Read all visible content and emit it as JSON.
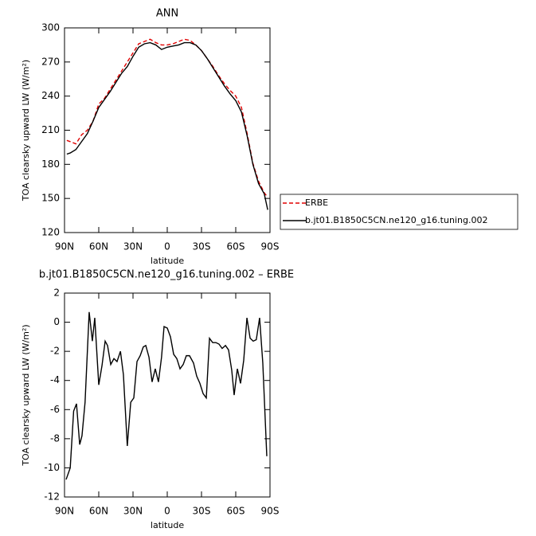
{
  "chart_data": [
    {
      "type": "line",
      "title": "ANN",
      "xlabel": "latitude",
      "ylabel": "TOA clearsky upward LW (W/m²)",
      "x": [
        88,
        85,
        80,
        75,
        70,
        65,
        60,
        55,
        50,
        45,
        40,
        35,
        30,
        25,
        20,
        15,
        10,
        5,
        0,
        -5,
        -10,
        -15,
        -20,
        -25,
        -30,
        -35,
        -40,
        -45,
        -50,
        -55,
        -60,
        -65,
        -70,
        -75,
        -80,
        -85,
        -88
      ],
      "series": [
        {
          "name": "ERBE",
          "color": "#e00000",
          "dash": true,
          "values": [
            201,
            200,
            198,
            206,
            210,
            218,
            233,
            238,
            246,
            254,
            262,
            270,
            278,
            286,
            288,
            290,
            287,
            285,
            285,
            286,
            288,
            290,
            289,
            285,
            280,
            273,
            266,
            258,
            251,
            245,
            240,
            230,
            207,
            181,
            165,
            155,
            151
          ]
        },
        {
          "name": "b.jt01.B1850C5CN.ne120_g16.tuning.002",
          "color": "#000000",
          "dash": false,
          "values": [
            189,
            190,
            193,
            200,
            207,
            218,
            230,
            237,
            244,
            252,
            260,
            266,
            275,
            283,
            286,
            287,
            285,
            281,
            283,
            284,
            285,
            287,
            287,
            285,
            280,
            273,
            265,
            257,
            249,
            242,
            236,
            226,
            205,
            180,
            163,
            154,
            140
          ]
        }
      ],
      "xlim": [
        90,
        -90
      ],
      "xticks": [
        {
          "value": 90,
          "label": "90N"
        },
        {
          "value": 60,
          "label": "60N"
        },
        {
          "value": 30,
          "label": "30N"
        },
        0,
        {
          "value": -30,
          "label": "30S"
        },
        {
          "value": -60,
          "label": "60S"
        },
        {
          "value": -90,
          "label": "90S"
        }
      ],
      "ylim": [
        120,
        300
      ],
      "yticks": [
        120,
        150,
        180,
        210,
        240,
        270,
        300
      ],
      "legend": "right"
    },
    {
      "type": "line",
      "title": "b.jt01.B1850C5CN.ne120_g16.tuning.002 – ERBE",
      "xlabel": "latitude",
      "ylabel": "TOA clearsky upward LW (W/m²)",
      "x": [
        88.6,
        85,
        82,
        79.5,
        76.7,
        74.7,
        72,
        68.4,
        65.6,
        63.5,
        60,
        57.2,
        54.4,
        52.3,
        49.5,
        46.7,
        44,
        41,
        38.4,
        35,
        32,
        29.3,
        26.5,
        23.7,
        21,
        18.8,
        16,
        13.3,
        10.5,
        7.7,
        5,
        2.8,
        0,
        -2.8,
        -5.6,
        -8.4,
        -11.2,
        -14,
        -16.7,
        -19.5,
        -23,
        -25.8,
        -28.6,
        -31.4,
        -34.2,
        -37,
        -39.8,
        -42.6,
        -45.3,
        -48.1,
        -51,
        -53.7,
        -56.5,
        -58.6,
        -61.4,
        -64.2,
        -67,
        -69.8,
        -72.6,
        -75.3,
        -78,
        -80.9,
        -83.7,
        -87.2
      ],
      "series": [
        {
          "name": null,
          "color": "#000000",
          "dash": false,
          "values": [
            -10.8,
            -10,
            -6.1,
            -5.6,
            -8.4,
            -7.8,
            -5.5,
            0.7,
            -1.3,
            0.3,
            -4.3,
            -3,
            -1.3,
            -1.6,
            -2.9,
            -2.5,
            -2.7,
            -2,
            -3.6,
            -8.5,
            -5.5,
            -5.2,
            -2.7,
            -2.3,
            -1.7,
            -1.6,
            -2.4,
            -4.1,
            -3.2,
            -4.1,
            -2.4,
            -0.3,
            -0.4,
            -1,
            -2.2,
            -2.5,
            -3.2,
            -2.9,
            -2.3,
            -2.3,
            -2.8,
            -3.7,
            -4.2,
            -4.9,
            -5.2,
            -1.1,
            -1.4,
            -1.4,
            -1.5,
            -1.8,
            -1.6,
            -1.9,
            -3.3,
            -5,
            -3.2,
            -4.2,
            -2.6,
            0.3,
            -1.1,
            -1.3,
            -1.2,
            0.3,
            -2.8,
            -9.2
          ]
        }
      ],
      "xlim": [
        90,
        -90
      ],
      "xticks": [
        {
          "value": 90,
          "label": "90N"
        },
        {
          "value": 60,
          "label": "60N"
        },
        {
          "value": 30,
          "label": "30N"
        },
        0,
        {
          "value": -30,
          "label": "30S"
        },
        {
          "value": -60,
          "label": "60S"
        },
        {
          "value": -90,
          "label": "90S"
        }
      ],
      "ylim": [
        -12,
        2
      ],
      "yticks": [
        -12,
        -10,
        -8,
        -6,
        -4,
        -2,
        0,
        2
      ]
    }
  ]
}
